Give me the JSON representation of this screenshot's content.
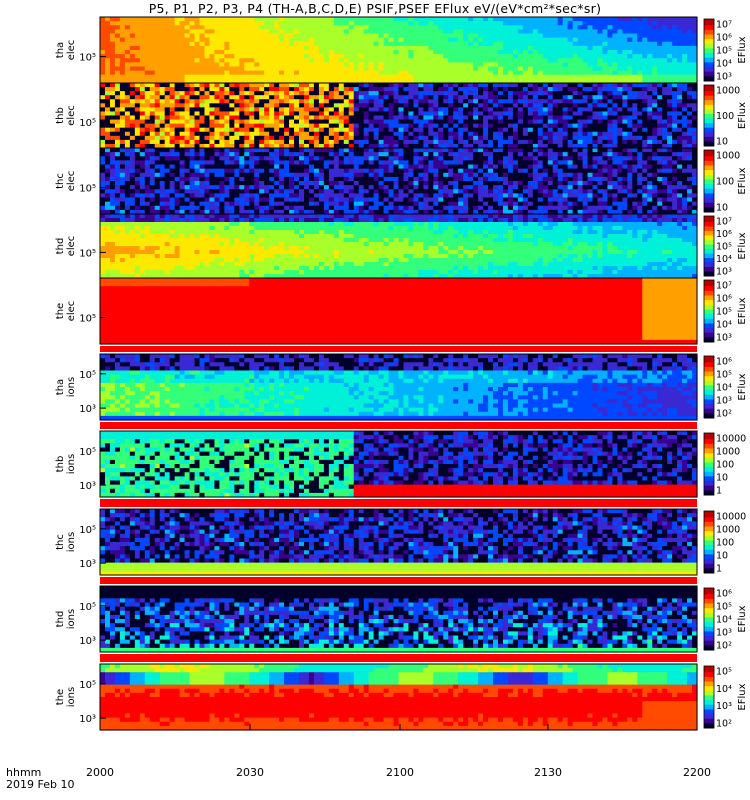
{
  "title": "P5, P1, P2, P3, P4  (TH-A,B,C,D,E) PSIF,PSEF EFlux eV/(eV*cm²*sec*sr)",
  "footer": {
    "line1": "hhmm",
    "line2": "2019 Feb 10"
  },
  "colors": {
    "spectrum": [
      "#00002a",
      "#3a0090",
      "#3a29d2",
      "#0048ff",
      "#00b2ff",
      "#00f0d8",
      "#33ff7a",
      "#a8ff2a",
      "#ffe800",
      "#ffa000",
      "#ff4a00",
      "#ff0000",
      "#b80000"
    ]
  },
  "chart_data": {
    "type": "heatmap",
    "x_ticks": [
      "2000",
      "2030",
      "2100",
      "2130",
      "2200"
    ],
    "x_range": [
      "2019-02-10 20:00",
      "2019-02-10 22:00"
    ],
    "panels": [
      {
        "probe": "tha",
        "species": "elec",
        "ylabel": [
          "tha",
          "elec"
        ],
        "y_ticks": [
          "10⁵"
        ],
        "colorbar": {
          "label": "EFlux",
          "ticks": [
            "10⁷",
            "10⁶",
            "10⁵",
            "10⁴",
            "10³"
          ],
          "log_range": [
            3,
            7
          ]
        }
      },
      {
        "probe": "thb",
        "species": "elec",
        "ylabel": [
          "thb",
          "elec"
        ],
        "y_ticks": [
          "10⁵"
        ],
        "colorbar": {
          "label": "EFlux",
          "ticks": [
            "1000",
            "100",
            "10"
          ],
          "log_range": [
            0.5,
            3.5
          ]
        }
      },
      {
        "probe": "thc",
        "species": "elec",
        "ylabel": [
          "thc",
          "elec"
        ],
        "y_ticks": [
          "10⁵"
        ],
        "colorbar": {
          "label": "EFlux",
          "ticks": [
            "1000",
            "100",
            "10"
          ],
          "log_range": [
            0.5,
            3.5
          ]
        }
      },
      {
        "probe": "thd",
        "species": "elec",
        "ylabel": [
          "thd",
          "elec"
        ],
        "y_ticks": [
          "10⁵"
        ],
        "colorbar": {
          "label": "EFlux",
          "ticks": [
            "10⁷",
            "10⁶",
            "10⁵",
            "10⁴",
            "10³"
          ],
          "log_range": [
            3,
            7
          ]
        }
      },
      {
        "probe": "the",
        "species": "elec",
        "ylabel": [
          "the",
          "elec"
        ],
        "y_ticks": [
          "10⁵"
        ],
        "colorbar": {
          "label": "EFlux",
          "ticks": [
            "10⁷",
            "10⁶",
            "10⁵",
            "10⁴",
            "10³"
          ],
          "log_range": [
            3,
            7
          ]
        }
      },
      {
        "probe": "tha",
        "species": "ions",
        "ylabel": [
          "tha",
          "ions"
        ],
        "y_ticks": [
          "10⁵",
          "10³"
        ],
        "colorbar": {
          "label": "EFlux",
          "ticks": [
            "10⁶",
            "10⁵",
            "10⁴",
            "10³",
            "10²"
          ],
          "log_range": [
            2,
            6
          ]
        }
      },
      {
        "probe": "thb",
        "species": "ions",
        "ylabel": [
          "thb",
          "ions"
        ],
        "y_ticks": [
          "10⁵",
          "10³"
        ],
        "colorbar": {
          "label": "",
          "ticks": [
            "10000",
            "1000",
            "100",
            "10",
            "1"
          ],
          "log_range": [
            0,
            4
          ]
        }
      },
      {
        "probe": "thc",
        "species": "ions",
        "ylabel": [
          "thc",
          "ions"
        ],
        "y_ticks": [
          "10⁵",
          "10³"
        ],
        "colorbar": {
          "label": "",
          "ticks": [
            "10000",
            "1000",
            "100",
            "10",
            "1"
          ],
          "log_range": [
            0,
            4
          ]
        }
      },
      {
        "probe": "thd",
        "species": "ions",
        "ylabel": [
          "thd",
          "ions"
        ],
        "y_ticks": [
          "10⁵",
          "10³"
        ],
        "colorbar": {
          "label": "EFlux",
          "ticks": [
            "10⁶",
            "10⁵",
            "10⁴",
            "10³",
            "10²"
          ],
          "log_range": [
            2,
            6
          ]
        }
      },
      {
        "probe": "the",
        "species": "ions",
        "ylabel": [
          "the",
          "ions"
        ],
        "y_ticks": [
          "10⁵",
          "10³"
        ],
        "colorbar": {
          "label": "EFlux",
          "ticks": [
            "10⁵",
            "10⁴",
            "10³",
            "10²"
          ],
          "log_range": [
            2,
            5
          ]
        }
      }
    ]
  }
}
